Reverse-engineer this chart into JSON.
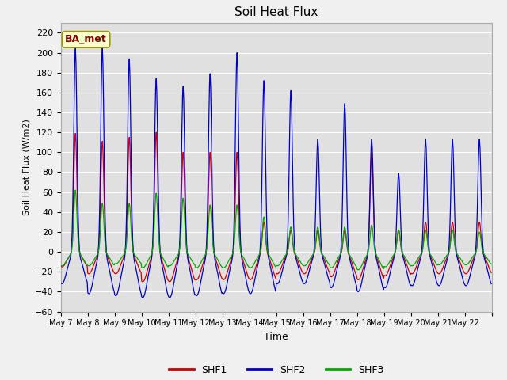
{
  "title": "Soil Heat Flux",
  "ylabel": "Soil Heat Flux (W/m2)",
  "xlabel": "Time",
  "ylim": [
    -60,
    230
  ],
  "yticks": [
    -60,
    -40,
    -20,
    0,
    20,
    40,
    60,
    80,
    100,
    120,
    140,
    160,
    180,
    200,
    220
  ],
  "fig_bg_color": "#f0f0f0",
  "plot_bg_color": "#e0e0e0",
  "grid_color": "#ffffff",
  "shf1_color": "#cc0000",
  "shf2_color": "#0000cc",
  "shf3_color": "#00aa00",
  "annotation_text": "BA_met",
  "annotation_bg": "#ffffcc",
  "annotation_border": "#999900",
  "annotation_text_color": "#880000",
  "n_days": 16,
  "start_day": 7,
  "legend_labels": [
    "SHF1",
    "SHF2",
    "SHF3"
  ],
  "shf2_peaks": [
    205,
    205,
    194,
    174,
    166,
    179,
    200,
    172,
    162,
    113,
    149,
    113,
    79,
    113,
    113,
    113
  ],
  "shf1_peaks": [
    119,
    111,
    115,
    120,
    100,
    100,
    100,
    30,
    22,
    22,
    22,
    100,
    22,
    30,
    30,
    30
  ],
  "shf3_peaks": [
    62,
    49,
    49,
    59,
    54,
    47,
    47,
    35,
    25,
    25,
    25,
    27,
    22,
    22,
    22,
    20
  ],
  "shf2_troughs": [
    32,
    42,
    44,
    46,
    46,
    44,
    42,
    42,
    32,
    32,
    36,
    40,
    36,
    34,
    34,
    34
  ],
  "shf1_troughs": [
    15,
    22,
    22,
    30,
    30,
    28,
    28,
    28,
    22,
    22,
    25,
    28,
    24,
    22,
    22,
    22
  ],
  "shf3_troughs": [
    14,
    14,
    12,
    16,
    14,
    16,
    16,
    16,
    14,
    14,
    16,
    18,
    15,
    14,
    13,
    13
  ]
}
